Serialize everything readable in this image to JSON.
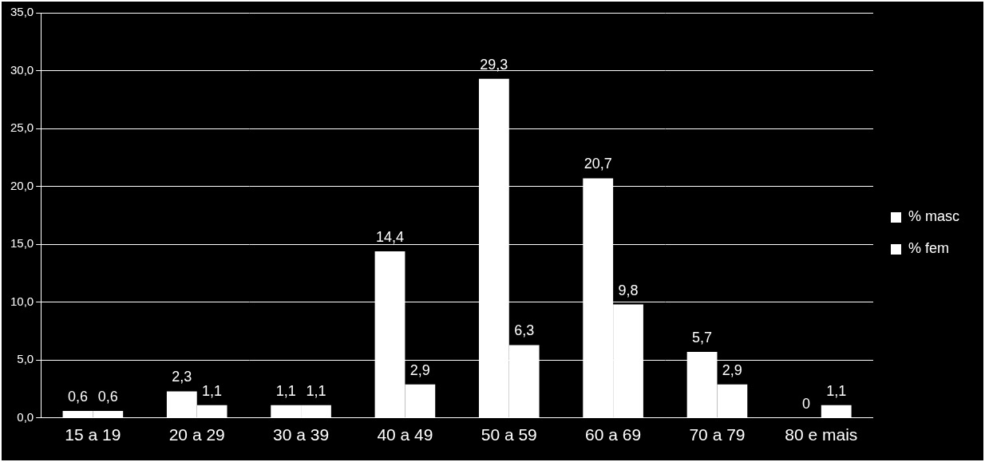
{
  "chart_data": {
    "type": "bar",
    "categories": [
      "15 a 19",
      "20 a 29",
      "30 a 39",
      "40 a 49",
      "50 a 59",
      "60 a 69",
      "70 a 79",
      "80 e mais"
    ],
    "series": [
      {
        "name": "% masc",
        "color": "#ffffff",
        "values": [
          0.6,
          2.3,
          1.1,
          14.4,
          29.3,
          20.7,
          5.7,
          0
        ],
        "value_labels": [
          "0,6",
          "2,3",
          "1,1",
          "14,4",
          "29,3",
          "20,7",
          "5,7",
          "0"
        ]
      },
      {
        "name": "% fem",
        "color": "#ffffff",
        "values": [
          0.6,
          1.1,
          1.1,
          2.9,
          6.3,
          9.8,
          2.9,
          1.1
        ],
        "value_labels": [
          "0,6",
          "1,1",
          "1,1",
          "2,9",
          "6,3",
          "9,8",
          "2,9",
          "1,1"
        ]
      }
    ],
    "ylim": [
      0,
      35
    ],
    "yticks": [
      {
        "value": 0,
        "label": "0,0"
      },
      {
        "value": 5,
        "label": "5,0"
      },
      {
        "value": 10,
        "label": "10,0"
      },
      {
        "value": 15,
        "label": "15,0"
      },
      {
        "value": 20,
        "label": "20,0"
      },
      {
        "value": 25,
        "label": "25,0"
      },
      {
        "value": 30,
        "label": "30,0"
      },
      {
        "value": 35,
        "label": "35,0"
      }
    ],
    "grid": true,
    "legend": "right",
    "data_labels": true
  }
}
